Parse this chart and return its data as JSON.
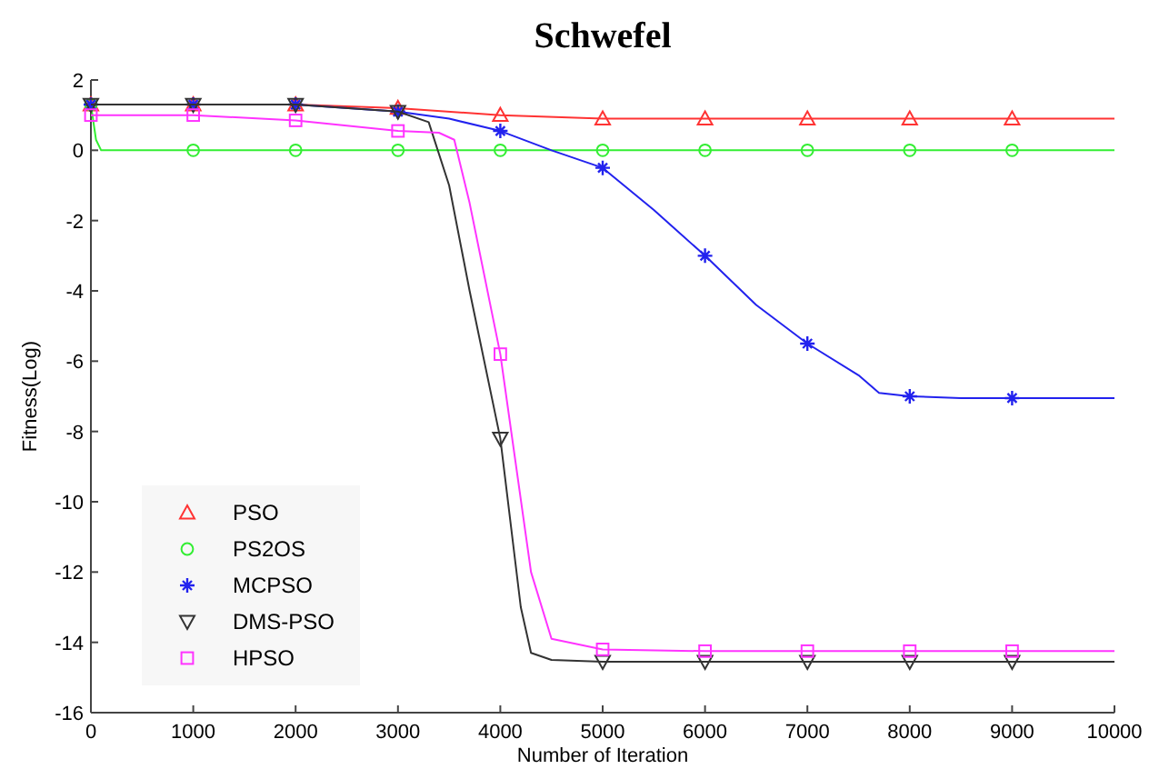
{
  "chart_data": {
    "type": "line",
    "title": "Schwefel",
    "xlabel": "Number of Iteration",
    "ylabel": "Fitness(Log)",
    "xlim": [
      0,
      10000
    ],
    "ylim": [
      -16,
      2
    ],
    "xticks": [
      0,
      1000,
      2000,
      3000,
      4000,
      5000,
      6000,
      7000,
      8000,
      9000,
      10000
    ],
    "yticks": [
      -16,
      -14,
      -12,
      -10,
      -8,
      -6,
      -4,
      -2,
      0,
      2
    ],
    "grid": false,
    "legend": "bottom left",
    "series": [
      {
        "name": "PSO",
        "color": "#ff3333",
        "marker": "triangle",
        "x": [
          0,
          1000,
          2000,
          3000,
          4000,
          5000,
          6000,
          7000,
          8000,
          9000,
          10000
        ],
        "values": [
          1.3,
          1.3,
          1.3,
          1.2,
          1.0,
          0.9,
          0.9,
          0.9,
          0.9,
          0.9,
          0.9
        ]
      },
      {
        "name": "PS2OS",
        "color": "#33ee33",
        "marker": "circle",
        "x": [
          0,
          50,
          100,
          1000,
          2000,
          3000,
          4000,
          5000,
          6000,
          7000,
          8000,
          9000,
          10000
        ],
        "values": [
          1.3,
          0.3,
          0,
          0,
          0,
          0,
          0,
          0,
          0,
          0,
          0,
          0,
          0
        ]
      },
      {
        "name": "MCPSO",
        "color": "#2222ee",
        "marker": "cross",
        "x": [
          0,
          1000,
          2000,
          3000,
          3500,
          4000,
          4500,
          5000,
          5500,
          6000,
          6500,
          7000,
          7500,
          7700,
          8000,
          8500,
          9000,
          10000
        ],
        "values": [
          1.3,
          1.3,
          1.3,
          1.1,
          0.9,
          0.55,
          0,
          -0.5,
          -1.7,
          -3.0,
          -4.4,
          -5.5,
          -6.4,
          -6.9,
          -7.0,
          -7.05,
          -7.05,
          -7.05
        ]
      },
      {
        "name": "DMS-PSO",
        "color": "#333333",
        "marker": "triangle-down",
        "x": [
          0,
          1000,
          2000,
          3000,
          3300,
          3500,
          3700,
          4000,
          4200,
          4300,
          4500,
          5000,
          6000,
          7000,
          8000,
          9000,
          10000
        ],
        "values": [
          1.3,
          1.3,
          1.3,
          1.1,
          0.8,
          -1,
          -4,
          -8.2,
          -13,
          -14.3,
          -14.5,
          -14.55,
          -14.55,
          -14.55,
          -14.55,
          -14.55,
          -14.55
        ]
      },
      {
        "name": "HPSO",
        "color": "#ff33ff",
        "marker": "square",
        "x": [
          0,
          1000,
          2000,
          3000,
          3400,
          3550,
          3700,
          4000,
          4300,
          4500,
          5000,
          6000,
          7000,
          8000,
          9000,
          10000
        ],
        "values": [
          1.0,
          1.0,
          0.85,
          0.55,
          0.5,
          0.3,
          -1.5,
          -5.8,
          -12,
          -13.9,
          -14.2,
          -14.25,
          -14.25,
          -14.25,
          -14.25,
          -14.25
        ]
      }
    ]
  }
}
